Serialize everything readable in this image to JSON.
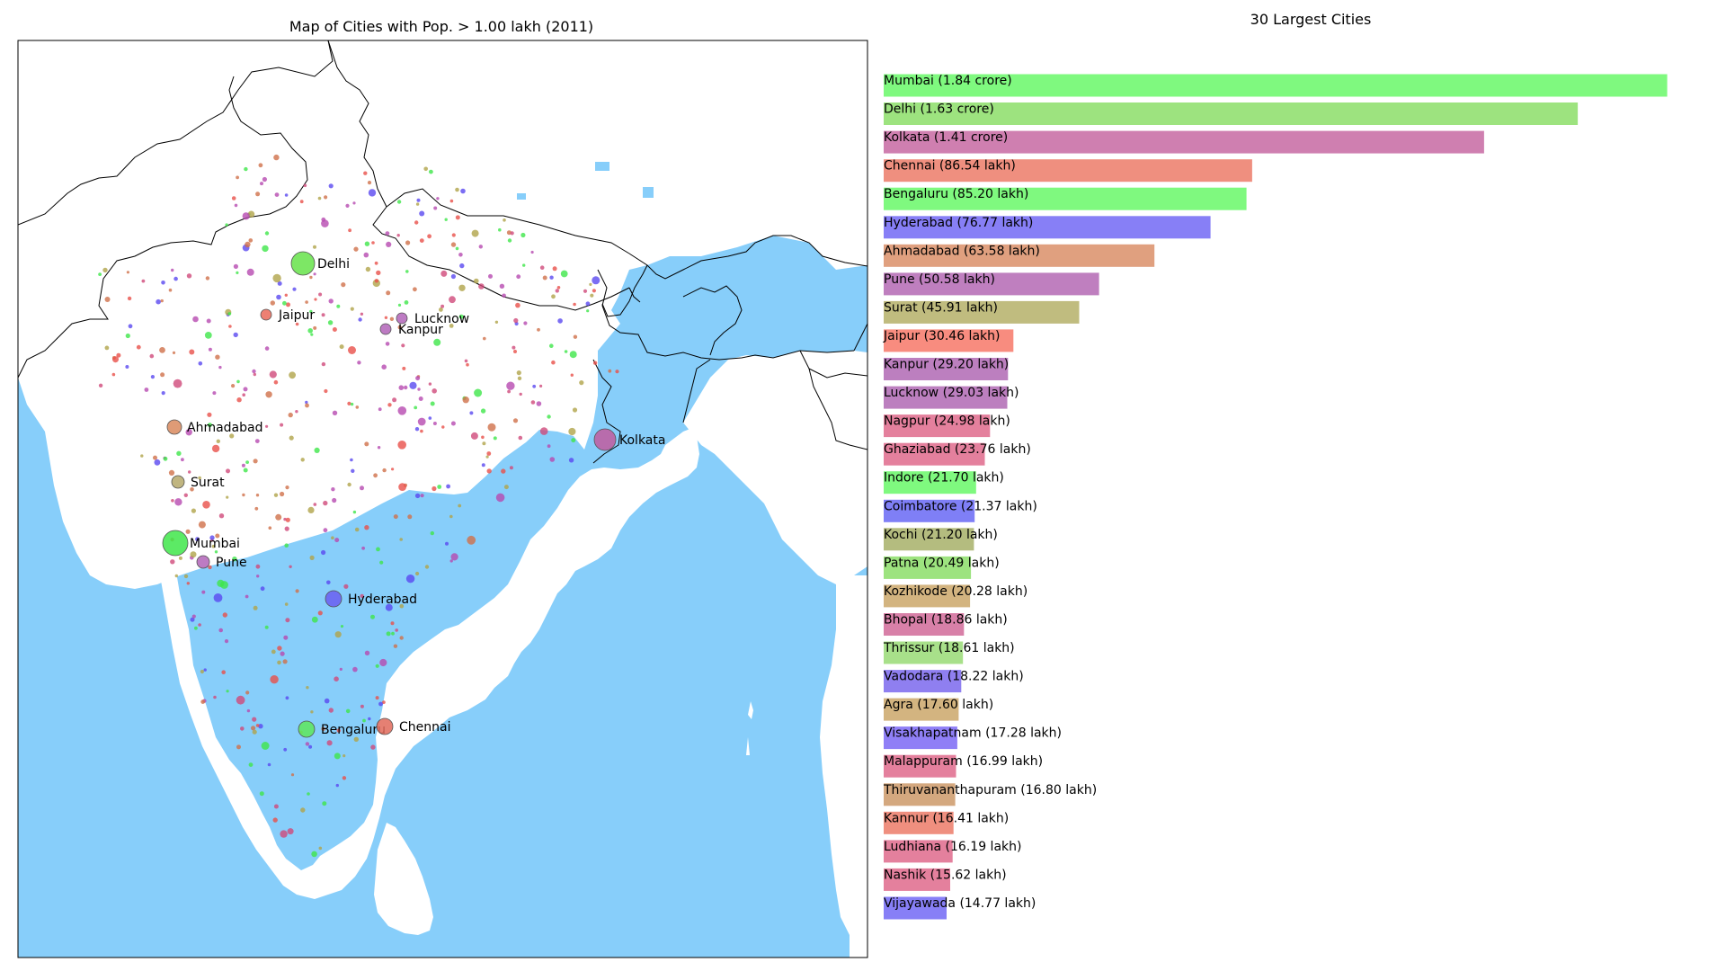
{
  "chart_data": [
    {
      "type": "scatter",
      "title": "Map of Cities with Pop. > 1.00 lakh (2011)",
      "colors": {
        "sea": "#87cefa",
        "land": "#ffffff",
        "border": "#000000"
      },
      "labeled_cities": [
        {
          "name": "Delhi",
          "color": "#66e34a"
        },
        {
          "name": "Jaipur",
          "color": "#ea6a5a"
        },
        {
          "name": "Lucknow",
          "color": "#b264b8"
        },
        {
          "name": "Kanpur",
          "color": "#b264b8"
        },
        {
          "name": "Ahmadabad",
          "color": "#d98a5e"
        },
        {
          "name": "Kolkata",
          "color": "#c15a9e"
        },
        {
          "name": "Surat",
          "color": "#b5a86a"
        },
        {
          "name": "Mumbai",
          "color": "#3fe64a"
        },
        {
          "name": "Pune",
          "color": "#b264b8"
        },
        {
          "name": "Hyderabad",
          "color": "#6a5ef0"
        },
        {
          "name": "Bengaluru",
          "color": "#5ee65a"
        },
        {
          "name": "Chennai",
          "color": "#e06a5a"
        }
      ]
    },
    {
      "type": "bar",
      "orientation": "horizontal",
      "title": "30 Largest Cities",
      "xlim": [
        0,
        19000000
      ],
      "categories": [
        "Mumbai (1.84 crore)",
        "Delhi (1.63 crore)",
        "Kolkata (1.41 crore)",
        "Chennai (86.54 lakh)",
        "Bengaluru (85.20 lakh)",
        "Hyderabad (76.77 lakh)",
        "Ahmadabad (63.58 lakh)",
        "Pune (50.58 lakh)",
        "Surat (45.91 lakh)",
        "Jaipur (30.46 lakh)",
        "Kanpur (29.20 lakh)",
        "Lucknow (29.03 lakh)",
        "Nagpur (24.98 lakh)",
        "Ghaziabad (23.76 lakh)",
        "Indore (21.70 lakh)",
        "Coimbatore (21.37 lakh)",
        "Kochi (21.20 lakh)",
        "Patna (20.49 lakh)",
        "Kozhikode (20.28 lakh)",
        "Bhopal (18.86 lakh)",
        "Thrissur (18.61 lakh)",
        "Vadodara (18.22 lakh)",
        "Agra (17.60 lakh)",
        "Visakhapatnam (17.28 lakh)",
        "Malappuram (16.99 lakh)",
        "Thiruvananthapuram (16.80 lakh)",
        "Kannur (16.41 lakh)",
        "Ludhiana (16.19 lakh)",
        "Nashik (15.62 lakh)",
        "Vijayawada (14.77 lakh)"
      ],
      "values": [
        18400000,
        16300000,
        14100000,
        8654000,
        8520000,
        7677000,
        6358000,
        5058000,
        4591000,
        3046000,
        2920000,
        2903000,
        2498000,
        2376000,
        2170000,
        2137000,
        2120000,
        2049000,
        2028000,
        1886000,
        1861000,
        1822000,
        1760000,
        1728000,
        1699000,
        1680000,
        1641000,
        1619000,
        1562000,
        1477000
      ],
      "colors": [
        "#7ff97f",
        "#9de37f",
        "#cf7fb0",
        "#ef8f7f",
        "#7ff97f",
        "#877ff6",
        "#e0a07f",
        "#bf7fbf",
        "#c0bc7f",
        "#f88c7f",
        "#bc7fbf",
        "#bc7fbf",
        "#e4809d",
        "#e4809d",
        "#7ff97f",
        "#7f7ff6",
        "#b4bc7f",
        "#9de37f",
        "#d3b480",
        "#d880a8",
        "#a8e08a",
        "#8f7ff0",
        "#d3b480",
        "#8f7ff6",
        "#e4809d",
        "#d4a87f",
        "#ef8f7f",
        "#e4809d",
        "#e4809d",
        "#877ff6"
      ]
    }
  ]
}
